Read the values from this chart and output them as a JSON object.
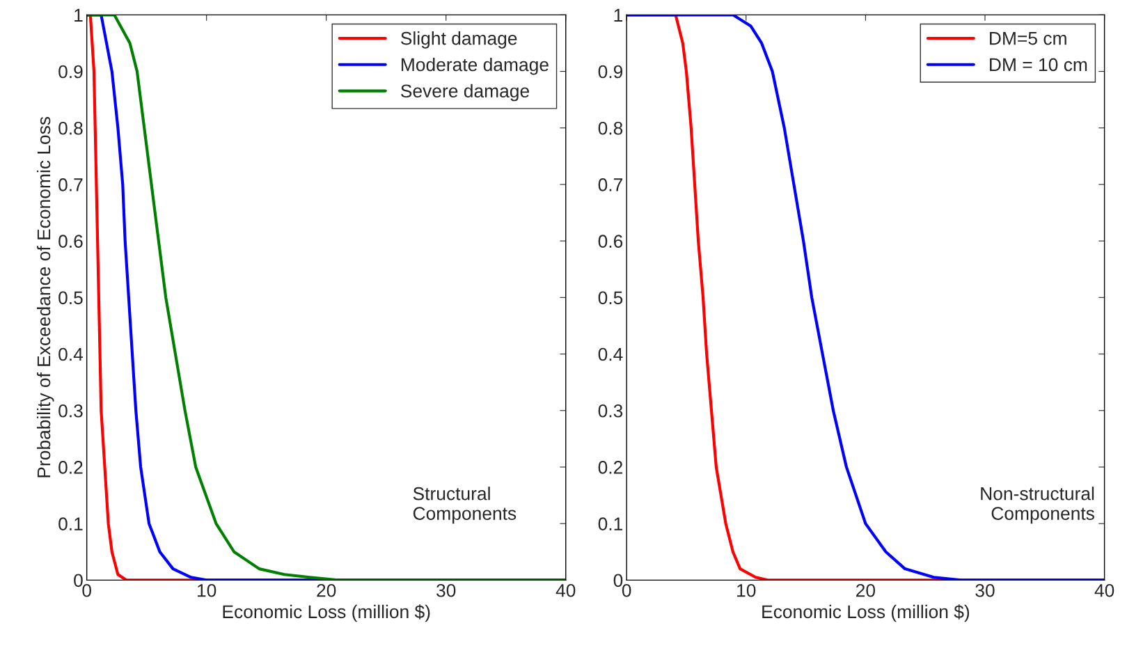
{
  "chart_data": [
    {
      "type": "line",
      "xlabel": "Economic Loss (million $)",
      "ylabel": "Probability of Exceedance of Economic Loss",
      "xlim": [
        0,
        40
      ],
      "ylim": [
        0,
        1
      ],
      "xticks": [
        0,
        10,
        20,
        30,
        40
      ],
      "yticks": [
        0,
        0.1,
        0.2,
        0.3,
        0.4,
        0.5,
        0.6,
        0.7,
        0.8,
        0.9,
        1
      ],
      "legend": "top right",
      "grid": false,
      "annotations": [
        "Structural\nComponents"
      ],
      "series": [
        {
          "name": "Slight damage",
          "color": "#ff0000",
          "x": [
            0,
            0.3,
            0.6,
            0.8,
            1.0,
            1.2,
            1.5,
            1.8,
            2.1,
            2.6,
            3.3,
            40
          ],
          "values": [
            1,
            1,
            0.9,
            0.7,
            0.5,
            0.3,
            0.2,
            0.1,
            0.05,
            0.01,
            0,
            0
          ]
        },
        {
          "name": "Moderate damage",
          "color": "#0000ff",
          "x": [
            0,
            1.2,
            2.1,
            2.6,
            3.0,
            3.2,
            3.5,
            3.8,
            4.1,
            4.5,
            5.2,
            6.1,
            7.2,
            8.7,
            10,
            40
          ],
          "values": [
            1,
            1,
            0.9,
            0.8,
            0.7,
            0.6,
            0.5,
            0.4,
            0.3,
            0.2,
            0.1,
            0.05,
            0.02,
            0.005,
            0,
            0
          ]
        },
        {
          "name": "Severe damage",
          "color": "#008000",
          "x": [
            0,
            2.3,
            3.6,
            4.2,
            4.8,
            5.4,
            6.0,
            6.6,
            7.4,
            8.2,
            9.1,
            10.8,
            12.3,
            14.4,
            16.5,
            18.6,
            21,
            40
          ],
          "values": [
            1,
            1,
            0.95,
            0.9,
            0.8,
            0.7,
            0.6,
            0.5,
            0.4,
            0.3,
            0.2,
            0.1,
            0.05,
            0.02,
            0.01,
            0.005,
            0,
            0
          ]
        }
      ]
    },
    {
      "type": "line",
      "xlabel": "Economic Loss (million $)",
      "xlim": [
        0,
        40
      ],
      "ylim": [
        0,
        1
      ],
      "xticks": [
        0,
        10,
        20,
        30,
        40
      ],
      "yticks": [
        0,
        0.1,
        0.2,
        0.3,
        0.4,
        0.5,
        0.6,
        0.7,
        0.8,
        0.9,
        1
      ],
      "legend": "top right",
      "grid": false,
      "annotations": [
        "Non-structural\nComponents"
      ],
      "series": [
        {
          "name": "DM=5 cm",
          "color": "#ff0000",
          "x": [
            0,
            4.1,
            4.7,
            5.0,
            5.4,
            5.7,
            6.0,
            6.4,
            6.7,
            7.1,
            7.5,
            8.3,
            8.9,
            9.5,
            10.8,
            11.8,
            40
          ],
          "values": [
            1,
            1,
            0.95,
            0.9,
            0.8,
            0.7,
            0.6,
            0.5,
            0.4,
            0.3,
            0.2,
            0.1,
            0.05,
            0.02,
            0.005,
            0,
            0
          ]
        },
        {
          "name": "DM = 10 cm",
          "color": "#0000ff",
          "x": [
            0,
            8.9,
            10.4,
            11.3,
            12.2,
            13.2,
            14.0,
            14.8,
            15.5,
            16.4,
            17.3,
            18.4,
            20.0,
            21.7,
            23.3,
            25.7,
            28,
            40
          ],
          "values": [
            1,
            1,
            0.98,
            0.95,
            0.9,
            0.8,
            0.7,
            0.6,
            0.5,
            0.4,
            0.3,
            0.2,
            0.1,
            0.05,
            0.02,
            0.005,
            0,
            0
          ]
        }
      ]
    }
  ]
}
